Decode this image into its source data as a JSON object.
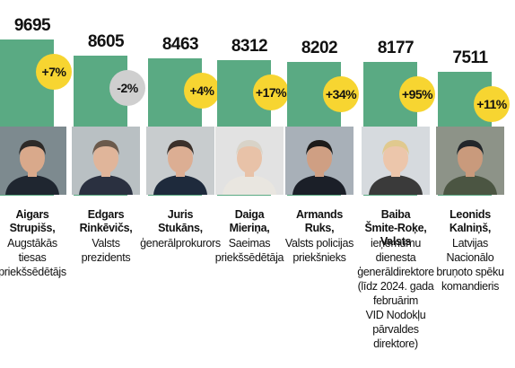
{
  "chart_data": {
    "type": "bar",
    "categories": [
      "Aigars Strupišs",
      "Edgars Rinkēvičs",
      "Juris Stukāns",
      "Daiga Mieriņa",
      "Armands Ruks",
      "Baiba Šmite-Roķe",
      "Leonids Kalniņš"
    ],
    "values": [
      9695,
      8605,
      8463,
      8312,
      8202,
      8177,
      7511
    ],
    "value_labels": [
      "9695",
      "8605",
      "8463",
      "8312",
      "8202",
      "8177",
      "7511"
    ],
    "changes": [
      "+7%",
      "-2%",
      "+4%",
      "+17%",
      "+34%",
      "+95%",
      "+11%"
    ],
    "people": [
      {
        "name_lines": [
          "Aigars",
          "Strupišs,"
        ],
        "role_lines": [
          "Augstākās",
          "tiesas",
          "priekšsēdētājs"
        ]
      },
      {
        "name_lines": [
          "Edgars",
          "Rinkēvičs,"
        ],
        "role_lines": [
          "Valsts",
          "prezidents"
        ]
      },
      {
        "name_lines": [
          "Juris",
          "Stukāns,"
        ],
        "role_lines": [
          "ģenerālprokurors"
        ]
      },
      {
        "name_lines": [
          "Daiga",
          "Mieriņa,"
        ],
        "role_lines": [
          "Saeimas",
          "priekšsēdētāja"
        ]
      },
      {
        "name_lines": [
          "Armands",
          "Ruks,"
        ],
        "role_lines": [
          "Valsts policijas",
          "priekšnieks"
        ]
      },
      {
        "name_lines": [
          "Baiba",
          "Šmite-Roķe, Valsts"
        ],
        "role_lines": [
          "ieņēmumu dienesta",
          "ģenerāldirektore",
          "(līdz 2024. gada",
          "februārim",
          "VID Nodokļu",
          "pārvaldes",
          "direktore)"
        ]
      },
      {
        "name_lines": [
          "Leonids",
          "Kalniņš,"
        ],
        "role_lines": [
          "Latvijas",
          "Nacionālo",
          "bruņoto spēku",
          "komandieris"
        ]
      }
    ],
    "colors": {
      "bar": "#5aaa83",
      "positive_badge": "#f7d531",
      "negative_badge": "#cfcfcf"
    }
  }
}
